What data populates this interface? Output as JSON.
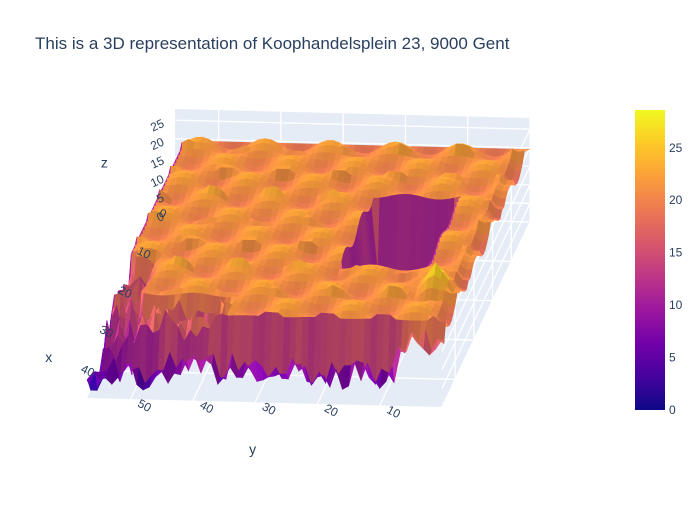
{
  "chart_data": {
    "type": "surface",
    "title": "This is a 3D representation of Koophandelsplein 23, 9000 Gent",
    "axes": {
      "x": {
        "label": "x",
        "ticks": [
          0,
          10,
          20,
          30,
          40
        ],
        "range": [
          0,
          47
        ]
      },
      "y": {
        "label": "y",
        "ticks": [
          10,
          20,
          30,
          40,
          50
        ],
        "range": [
          0,
          57
        ]
      },
      "z": {
        "label": "z",
        "ticks": [
          0,
          5,
          10,
          15,
          20,
          25
        ],
        "range": [
          0,
          28
        ]
      }
    },
    "colorbar": {
      "ticks": [
        0,
        5,
        10,
        15,
        20,
        25
      ],
      "range": [
        0,
        28.6
      ],
      "colorscale": [
        "#0d0887",
        "#46039f",
        "#7201a8",
        "#9c179e",
        "#bd3786",
        "#d8576b",
        "#ed7953",
        "#fb9f3a",
        "#fdca26",
        "#f0f921"
      ]
    },
    "surface": {
      "grid_size": [
        48,
        58
      ],
      "building_height": 21,
      "courtyard": {
        "x": [
          15,
          31
        ],
        "y": [
          8,
          20
        ],
        "floor": 1
      },
      "peak": {
        "x": 37,
        "y": 4,
        "z": 28
      },
      "ground_level": 0
    },
    "grid": true
  }
}
